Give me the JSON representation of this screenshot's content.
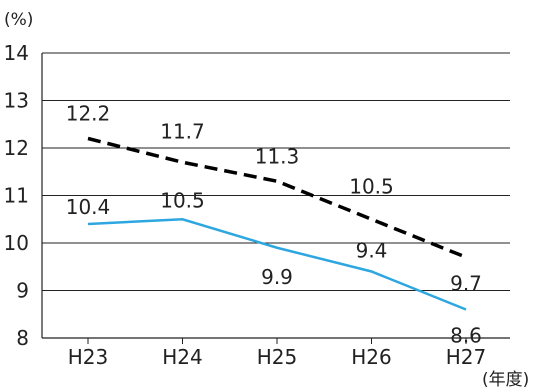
{
  "chart_data": {
    "type": "line",
    "categories": [
      "H23",
      "H24",
      "H25",
      "H26",
      "H27"
    ],
    "y_unit_label": "(%)",
    "x_unit_label": "(年度)",
    "ylim": [
      8,
      14
    ],
    "y_ticks": [
      "8",
      "9",
      "10",
      "11",
      "12",
      "13",
      "14"
    ],
    "grid": true,
    "series": [
      {
        "key": "black",
        "color": "#000000",
        "style": "dashed",
        "values": [
          12.2,
          11.7,
          11.3,
          10.5,
          9.7
        ],
        "labels": [
          "12.2",
          "11.7",
          "11.3",
          "10.5",
          "9.7"
        ]
      },
      {
        "key": "blue",
        "color": "#2EA7E0",
        "style": "solid",
        "values": [
          10.4,
          10.5,
          9.9,
          9.4,
          8.6
        ],
        "labels": [
          "10.4",
          "10.5",
          "9.9",
          "9.4",
          "8.6"
        ]
      }
    ]
  }
}
